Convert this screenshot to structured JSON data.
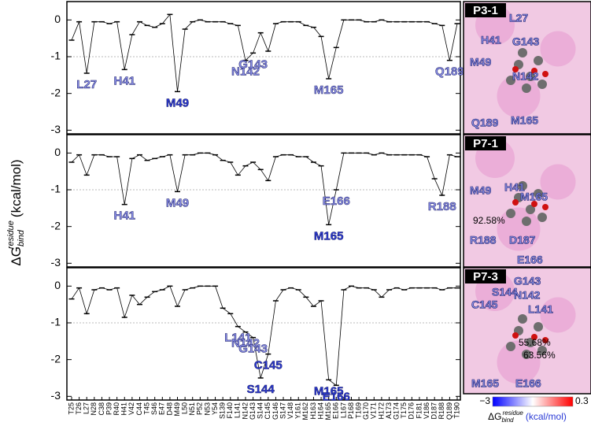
{
  "chart_data": {
    "type": "line",
    "ylabel": {
      "main": "ΔG",
      "sup": "residue",
      "sub": "bind",
      "unit": "(kcal/mol)"
    },
    "categories": [
      "T25",
      "T26",
      "L27",
      "N28",
      "C38",
      "P39",
      "R40",
      "H41",
      "V42",
      "C44",
      "T45",
      "S46",
      "E47",
      "D48",
      "M49",
      "L50",
      "N51",
      "P52",
      "N53",
      "Y54",
      "S139",
      "F140",
      "L141",
      "N142",
      "G143",
      "S144",
      "C145",
      "G146",
      "S147",
      "V148",
      "Y161",
      "M162",
      "H163",
      "H164",
      "M165",
      "E166",
      "L167",
      "P168",
      "T169",
      "G170",
      "V171",
      "H172",
      "A173",
      "G174",
      "T175",
      "D176",
      "F181",
      "V186",
      "D187",
      "R188",
      "Q189",
      "T190"
    ],
    "ylim": [
      -3.1,
      0.5
    ],
    "yticks": [
      0,
      -1,
      -2,
      -3
    ],
    "reference_line": -1,
    "color": "#000000",
    "series": [
      {
        "name": "P3-1",
        "values": [
          -0.55,
          -0.05,
          -1.45,
          -0.05,
          -0.05,
          -0.1,
          -0.05,
          -1.35,
          -0.4,
          -0.05,
          -0.15,
          -0.2,
          -0.1,
          0.15,
          -1.95,
          -0.25,
          -0.05,
          0,
          -0.05,
          -0.05,
          -0.05,
          -0.1,
          -0.15,
          -1.1,
          -0.9,
          -0.35,
          -0.85,
          -0.1,
          -0.05,
          -0.05,
          -0.05,
          -0.15,
          -0.2,
          -0.45,
          -1.6,
          -0.75,
          0,
          0,
          0,
          -0.05,
          -0.05,
          0,
          -0.05,
          -0.05,
          -0.05,
          -0.05,
          -0.05,
          -0.05,
          -0.1,
          -0.15,
          -1.1,
          -0.1
        ],
        "labeled": [
          "L27",
          "H41",
          "M49",
          "N142",
          "G143",
          "M165",
          "Q189"
        ],
        "inset_labels": [
          "L27",
          "H41",
          "G143",
          "M49",
          "N142",
          "Q189",
          "M165"
        ]
      },
      {
        "name": "P7-1",
        "values": [
          -0.25,
          -0.05,
          -0.6,
          -0.05,
          -0.05,
          -0.1,
          -0.1,
          -1.4,
          -0.15,
          -0.05,
          -0.2,
          -0.15,
          -0.1,
          -0.05,
          -1.05,
          -0.05,
          -0.05,
          0,
          0,
          -0.05,
          -0.2,
          -0.25,
          -0.6,
          -0.35,
          -0.25,
          -0.45,
          -0.75,
          -0.1,
          -0.05,
          -0.05,
          -0.1,
          -0.1,
          -0.25,
          -0.35,
          -1.95,
          -1.0,
          0,
          0,
          0,
          0,
          -0.05,
          0,
          -0.05,
          -0.05,
          -0.05,
          -0.05,
          -0.05,
          -0.1,
          -0.7,
          -1.15,
          -0.05,
          -0.1
        ],
        "labeled": [
          "H41",
          "M49",
          "M165",
          "E166",
          "R188"
        ],
        "inset_labels": [
          "H41",
          "M49",
          "M165",
          "92.58%",
          "R188",
          "D187",
          "E166"
        ]
      },
      {
        "name": "P7-3",
        "values": [
          -0.35,
          -0.05,
          -0.75,
          -0.1,
          -0.05,
          -0.1,
          -0.05,
          -0.85,
          -0.25,
          -0.5,
          -0.3,
          -0.15,
          -0.1,
          0,
          -0.55,
          -0.1,
          -0.05,
          0,
          0,
          0,
          -0.6,
          -0.75,
          -1.1,
          -1.25,
          -1.4,
          -2.5,
          -1.85,
          -0.4,
          -0.1,
          -0.05,
          -0.1,
          -0.3,
          -0.55,
          -0.4,
          -2.55,
          -2.7,
          -0.1,
          0,
          -0.05,
          -0.05,
          -0.1,
          -0.3,
          -0.1,
          -0.05,
          -0.1,
          -0.05,
          -0.05,
          -0.05,
          -0.05,
          -0.1,
          -0.05,
          -0.05
        ],
        "labeled": [
          "L141",
          "N142",
          "G143",
          "S144",
          "C145",
          "M165",
          "E166"
        ],
        "inset_labels": [
          "G143",
          "S144",
          "N142",
          "C145",
          "L141",
          "55.68%",
          "63.56%",
          "M165",
          "E166"
        ]
      }
    ],
    "colorbar": {
      "ticks": [
        {
          "value": -3,
          "label": "−3"
        },
        0.3
      ],
      "colors": [
        "#0000ff",
        "#ffffff",
        "#ff0000"
      ],
      "label": {
        "main": "ΔG",
        "sup": "residue",
        "sub": "bind",
        "unit": "(kcal/mol)"
      }
    }
  }
}
